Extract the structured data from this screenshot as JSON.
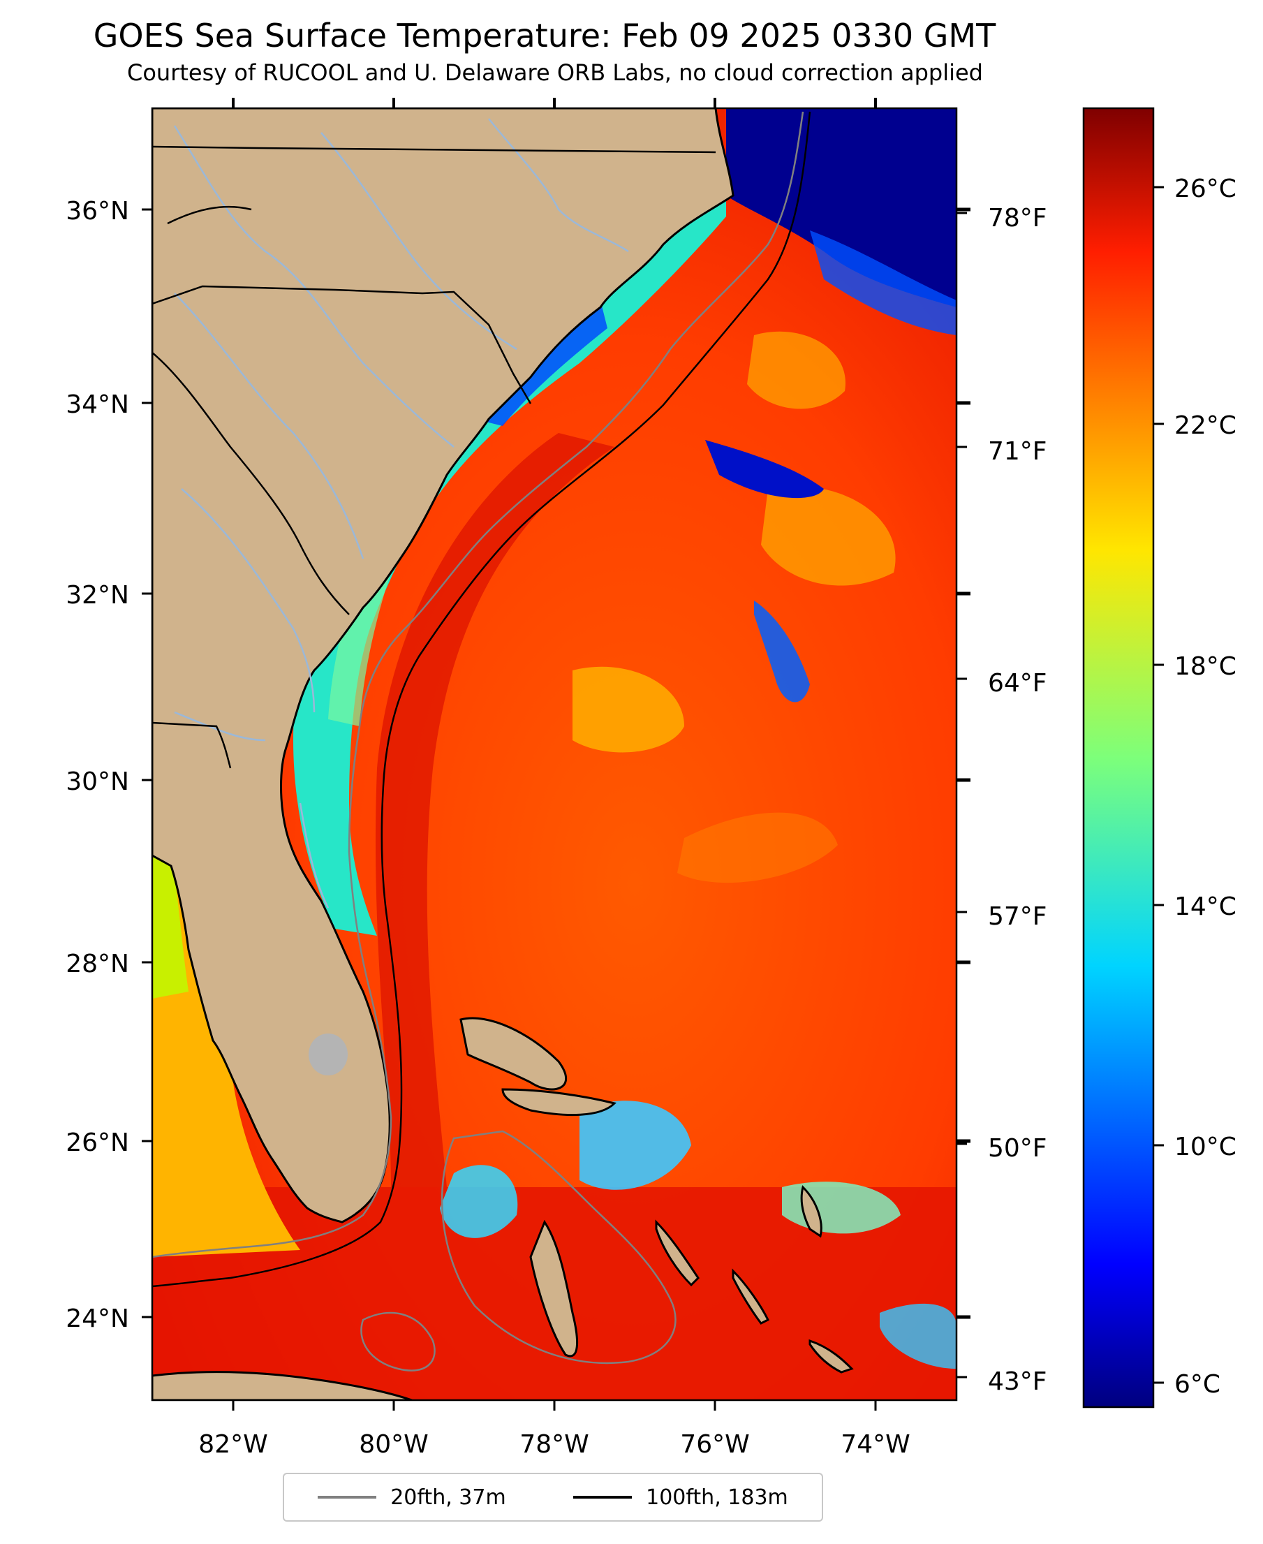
{
  "title": "GOES Sea Surface Temperature: Feb 09 2025 0330 GMT",
  "subtitle": "Courtesy of RUCOOL and U. Delaware ORB Labs, no cloud correction applied",
  "map": {
    "lat_labels": [
      "36°N",
      "34°N",
      "32°N",
      "30°N",
      "28°N",
      "26°N",
      "24°N"
    ],
    "lon_labels": [
      "82°W",
      "80°W",
      "78°W",
      "76°W",
      "74°W"
    ],
    "f_labels": [
      "78°F",
      "71°F",
      "64°F",
      "57°F",
      "50°F",
      "43°F"
    ],
    "colors": {
      "land": "#d0b38c",
      "rivers": "#9bb8d8",
      "coast": "#000000",
      "isobath_20": "#808080",
      "isobath_100": "#000000"
    }
  },
  "colorbar": {
    "c_labels": [
      "26°C",
      "22°C",
      "18°C",
      "14°C",
      "10°C",
      "6°C"
    ],
    "colormap": "jet",
    "range_c": [
      5.5,
      27.5
    ]
  },
  "legend": {
    "items": [
      {
        "label": "20fth, 37m",
        "color": "#808080"
      },
      {
        "label": "100fth, 183m",
        "color": "#000000"
      }
    ]
  }
}
